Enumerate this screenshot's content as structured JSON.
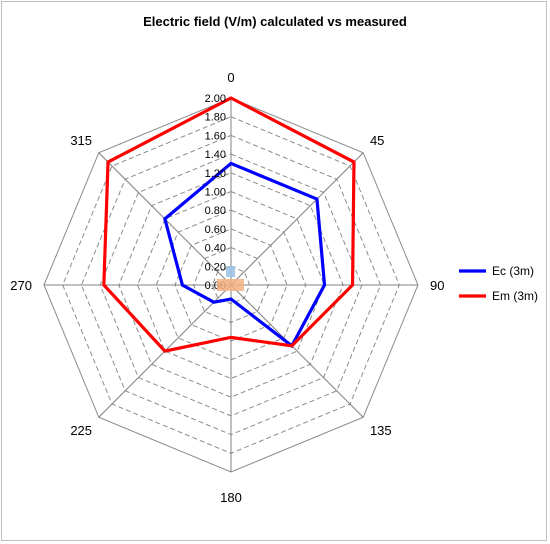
{
  "chart_data": {
    "type": "radar",
    "title": "Electric field (V/m) calculated vs measured",
    "categories": [
      "0",
      "45",
      "90",
      "135",
      "180",
      "225",
      "270",
      "315"
    ],
    "rlim": [
      0,
      2.0
    ],
    "ticks": [
      "0.00",
      "0.20",
      "0.40",
      "0.60",
      "0.80",
      "1.00",
      "1.20",
      "1.40",
      "1.60",
      "1.80",
      "2.00"
    ],
    "grid": true,
    "legend_position": "right",
    "series": [
      {
        "name": "Ec (3m)",
        "color": "#0000ff",
        "values": [
          1.3,
          1.3,
          1.0,
          0.92,
          0.15,
          0.26,
          0.52,
          1.0
        ]
      },
      {
        "name": "Em (3m)",
        "color": "#ff0000",
        "values": [
          2.0,
          1.86,
          1.3,
          0.92,
          0.56,
          1.0,
          1.36,
          1.86
        ]
      }
    ]
  }
}
